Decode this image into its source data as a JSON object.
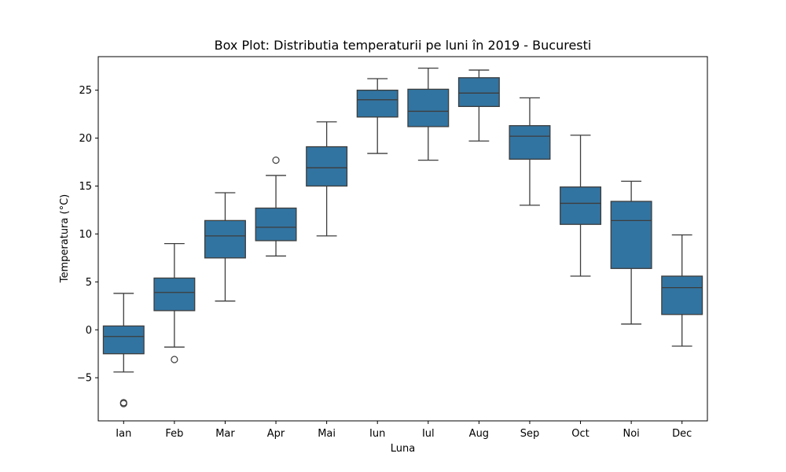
{
  "chart_data": {
    "type": "box",
    "title": "Box Plot: Distributia temperaturii pe luni în 2019 - Bucuresti",
    "xlabel": "Luna",
    "ylabel": "Temperatura (°C)",
    "ylim": [
      -9.5,
      28.5
    ],
    "yticks": [
      -5,
      0,
      5,
      10,
      15,
      20,
      25
    ],
    "ytick_labels": [
      "−5",
      "0",
      "5",
      "10",
      "15",
      "20",
      "25"
    ],
    "grid": false,
    "legend": "none",
    "color": "#3274a1",
    "categories": [
      "Ian",
      "Feb",
      "Mar",
      "Apr",
      "Mai",
      "Iun",
      "Iul",
      "Aug",
      "Sep",
      "Oct",
      "Noi",
      "Dec"
    ],
    "boxes": [
      {
        "whisker_low": -4.4,
        "q1": -2.5,
        "median": -0.7,
        "q3": 0.4,
        "whisker_high": 3.8,
        "outliers": [
          -7.6,
          -7.7
        ]
      },
      {
        "whisker_low": -1.8,
        "q1": 2.0,
        "median": 3.9,
        "q3": 5.4,
        "whisker_high": 9.0,
        "outliers": [
          -3.1
        ]
      },
      {
        "whisker_low": 3.0,
        "q1": 7.5,
        "median": 9.8,
        "q3": 11.4,
        "whisker_high": 14.3,
        "outliers": []
      },
      {
        "whisker_low": 7.7,
        "q1": 9.3,
        "median": 10.7,
        "q3": 12.7,
        "whisker_high": 16.1,
        "outliers": [
          17.7
        ]
      },
      {
        "whisker_low": 9.8,
        "q1": 15.0,
        "median": 16.9,
        "q3": 19.1,
        "whisker_high": 21.7,
        "outliers": []
      },
      {
        "whisker_low": 18.4,
        "q1": 22.2,
        "median": 24.0,
        "q3": 25.0,
        "whisker_high": 26.2,
        "outliers": []
      },
      {
        "whisker_low": 17.7,
        "q1": 21.2,
        "median": 22.8,
        "q3": 25.1,
        "whisker_high": 27.3,
        "outliers": []
      },
      {
        "whisker_low": 19.7,
        "q1": 23.3,
        "median": 24.7,
        "q3": 26.3,
        "whisker_high": 27.1,
        "outliers": []
      },
      {
        "whisker_low": 13.0,
        "q1": 17.8,
        "median": 20.2,
        "q3": 21.3,
        "whisker_high": 24.2,
        "outliers": []
      },
      {
        "whisker_low": 5.6,
        "q1": 11.0,
        "median": 13.2,
        "q3": 14.9,
        "whisker_high": 20.3,
        "outliers": []
      },
      {
        "whisker_low": 0.6,
        "q1": 6.4,
        "median": 11.4,
        "q3": 13.4,
        "whisker_high": 15.5,
        "outliers": []
      },
      {
        "whisker_low": -1.7,
        "q1": 1.6,
        "median": 4.4,
        "q3": 5.6,
        "whisker_high": 9.9,
        "outliers": []
      }
    ]
  }
}
